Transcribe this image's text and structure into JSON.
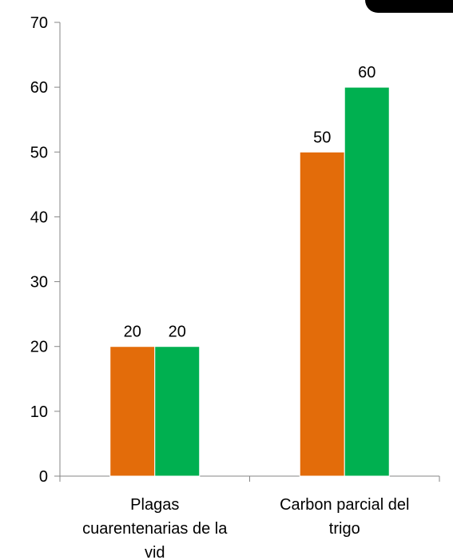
{
  "chart_data": {
    "type": "bar",
    "categories": [
      [
        "Plagas",
        "cuarentenarias de la",
        "vid"
      ],
      [
        "Carbon parcial del",
        "trigo"
      ]
    ],
    "series": [
      {
        "color": "#E36C0A",
        "values": [
          20,
          50
        ]
      },
      {
        "color": "#00B050",
        "values": [
          20,
          60
        ]
      }
    ],
    "yticks": [
      0,
      10,
      20,
      30,
      40,
      50,
      60,
      70
    ],
    "ylim": [
      0,
      70
    ],
    "grid": false,
    "legend": "none",
    "data_labels": true
  }
}
